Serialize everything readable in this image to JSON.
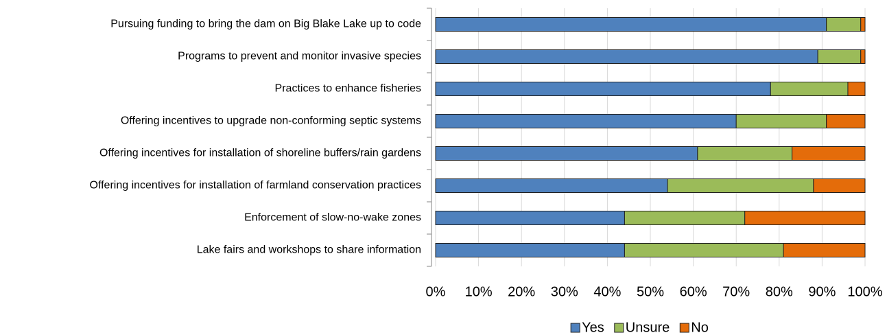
{
  "chart_data": {
    "type": "stacked-barh",
    "categories": [
      "Pursuing funding to bring the dam on Big Blake Lake up to code",
      "Programs to prevent and monitor invasive species",
      "Practices to enhance fisheries",
      "Offering incentives to upgrade non-conforming septic systems",
      "Offering incentives for installation of shoreline buffers/rain gardens",
      "Offering incentives for installation of farmland conservation practices",
      "Enforcement of slow-no-wake zones",
      "Lake fairs and workshops to share information"
    ],
    "series": [
      {
        "name": "Yes",
        "color": "#4f81bd",
        "values": [
          91,
          89,
          78,
          70,
          61,
          54,
          44,
          44
        ]
      },
      {
        "name": "Unsure",
        "color": "#9bbb59",
        "values": [
          8,
          10,
          18,
          21,
          22,
          34,
          28,
          37
        ]
      },
      {
        "name": "No",
        "color": "#e46c0a",
        "values": [
          1,
          1,
          4,
          9,
          17,
          12,
          28,
          19
        ]
      }
    ],
    "xlim": [
      0,
      100
    ],
    "xticks": [
      {
        "value": 0,
        "label": "0%"
      },
      {
        "value": 10,
        "label": "10%"
      },
      {
        "value": 20,
        "label": "20%"
      },
      {
        "value": 30,
        "label": "30%"
      },
      {
        "value": 40,
        "label": "40%"
      },
      {
        "value": 50,
        "label": "50%"
      },
      {
        "value": 60,
        "label": "60%"
      },
      {
        "value": 70,
        "label": "70%"
      },
      {
        "value": 80,
        "label": "80%"
      },
      {
        "value": 90,
        "label": "90%"
      },
      {
        "value": 100,
        "label": "100%"
      }
    ],
    "grid": true,
    "legend": "bottom"
  }
}
